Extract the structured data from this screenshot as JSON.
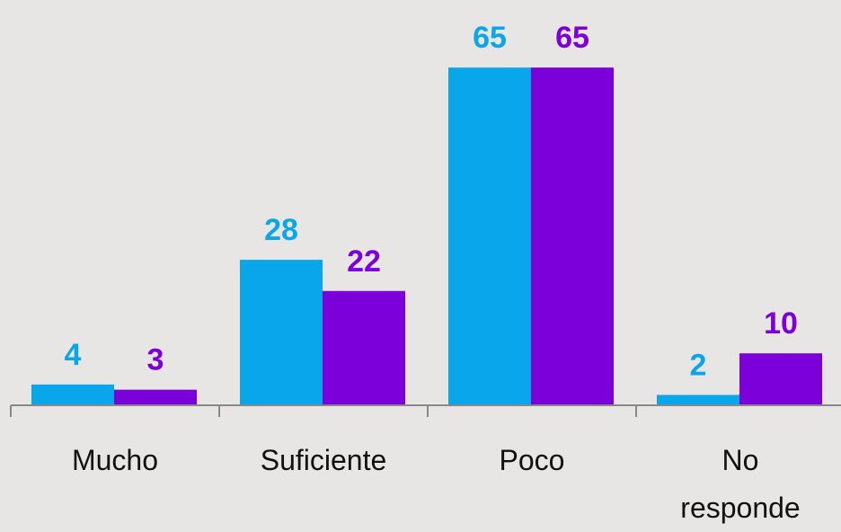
{
  "chart_data": {
    "type": "bar",
    "categories": [
      "Mucho",
      "Suficiente",
      "Poco",
      "No responde"
    ],
    "series": [
      {
        "color": "#0aa6ec",
        "values": [
          4,
          28,
          65,
          2
        ]
      },
      {
        "color": "#7b00d9",
        "values": [
          3,
          22,
          65,
          10
        ]
      }
    ],
    "ylim": [
      0,
      78
    ]
  }
}
